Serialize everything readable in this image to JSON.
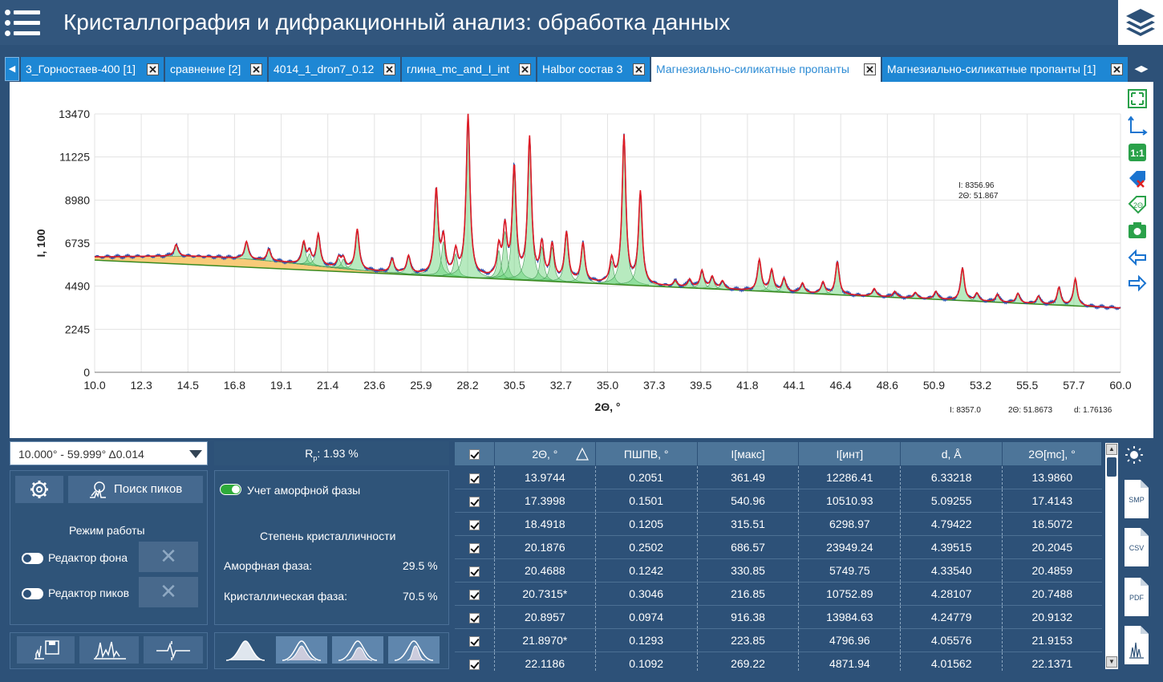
{
  "header": {
    "title": "Кристаллография и дифракционный анализ: обработка данных"
  },
  "tabs": [
    {
      "label": "3_Горностаев-400 [1]",
      "active": false
    },
    {
      "label": "сравнение [2]",
      "active": false
    },
    {
      "label": "4014_1_dron7_0.12",
      "active": false
    },
    {
      "label": "глина_mc_and_I_int",
      "active": false
    },
    {
      "label": "Halbor состав 3",
      "active": false
    },
    {
      "label": "Магнезиально-силикатные пропанты",
      "active": true
    },
    {
      "label": "Магнезиально-силикатные пропанты [1]",
      "active": false
    }
  ],
  "chart_data": {
    "type": "line",
    "xlabel": "2Θ, °",
    "ylabel": "I, 100",
    "xlim": [
      10.0,
      60.0
    ],
    "ylim": [
      0,
      13470
    ],
    "x_ticks": [
      "10.0",
      "12.3",
      "14.5",
      "16.8",
      "19.1",
      "21.4",
      "23.6",
      "25.9",
      "28.2",
      "30.5",
      "32.7",
      "35.0",
      "37.3",
      "39.5",
      "41.8",
      "44.1",
      "46.4",
      "48.6",
      "50.9",
      "53.2",
      "55.5",
      "57.7",
      "60.0"
    ],
    "y_ticks": [
      "0",
      "2245",
      "4490",
      "6735",
      "8980",
      "11225",
      "13470"
    ],
    "grid": true,
    "background_line": {
      "x": [
        10.0,
        60.0
      ],
      "y": [
        5850,
        3350
      ]
    },
    "peaks": [
      {
        "x": 13.97,
        "h": 600
      },
      {
        "x": 17.4,
        "h": 900
      },
      {
        "x": 18.49,
        "h": 600
      },
      {
        "x": 20.19,
        "h": 1100
      },
      {
        "x": 20.47,
        "h": 600
      },
      {
        "x": 20.9,
        "h": 1600
      },
      {
        "x": 21.9,
        "h": 500
      },
      {
        "x": 22.12,
        "h": 500
      },
      {
        "x": 22.8,
        "h": 2100
      },
      {
        "x": 24.5,
        "h": 700
      },
      {
        "x": 25.3,
        "h": 900
      },
      {
        "x": 26.65,
        "h": 4400
      },
      {
        "x": 27.0,
        "h": 1800
      },
      {
        "x": 27.6,
        "h": 1200
      },
      {
        "x": 28.2,
        "h": 8400
      },
      {
        "x": 29.7,
        "h": 1500
      },
      {
        "x": 30.0,
        "h": 2500
      },
      {
        "x": 30.45,
        "h": 5700
      },
      {
        "x": 31.2,
        "h": 7300
      },
      {
        "x": 31.8,
        "h": 1800
      },
      {
        "x": 32.3,
        "h": 1800
      },
      {
        "x": 33.0,
        "h": 2500
      },
      {
        "x": 33.8,
        "h": 2000
      },
      {
        "x": 35.2,
        "h": 1200
      },
      {
        "x": 35.8,
        "h": 7700
      },
      {
        "x": 36.6,
        "h": 4800
      },
      {
        "x": 38.3,
        "h": 300
      },
      {
        "x": 39.0,
        "h": 400
      },
      {
        "x": 39.6,
        "h": 900
      },
      {
        "x": 40.1,
        "h": 600
      },
      {
        "x": 40.6,
        "h": 400
      },
      {
        "x": 42.4,
        "h": 1600
      },
      {
        "x": 43.0,
        "h": 1100
      },
      {
        "x": 43.6,
        "h": 700
      },
      {
        "x": 44.5,
        "h": 500
      },
      {
        "x": 45.5,
        "h": 600
      },
      {
        "x": 46.2,
        "h": 1700
      },
      {
        "x": 48.0,
        "h": 400
      },
      {
        "x": 49.0,
        "h": 300
      },
      {
        "x": 50.0,
        "h": 300
      },
      {
        "x": 51.0,
        "h": 400
      },
      {
        "x": 52.3,
        "h": 1700
      },
      {
        "x": 53.0,
        "h": 400
      },
      {
        "x": 54.0,
        "h": 400
      },
      {
        "x": 55.0,
        "h": 500
      },
      {
        "x": 56.0,
        "h": 400
      },
      {
        "x": 57.0,
        "h": 900
      },
      {
        "x": 57.8,
        "h": 1400
      }
    ],
    "amorphous_hump": {
      "center": 16.0,
      "height": 450,
      "width": 6.0
    },
    "cursor_tooltip": {
      "line1": "I: 8356.96",
      "line2": "2Θ: 51.867"
    },
    "status": {
      "i": "I: 8357.0",
      "theta": "2Θ: 51.8673",
      "d": "d: 1.76136"
    }
  },
  "range_select": {
    "value": "10.000° - 59.999° Δ0.014"
  },
  "rp": {
    "label": "R",
    "sub": "p",
    "value": ": 1.93 %"
  },
  "controls": {
    "find_peaks": "Поиск пиков",
    "mode_title": "Режим работы",
    "bg_editor": "Редактор фона",
    "peak_editor": "Редактор пиков",
    "amorphous_toggle": "Учет аморфной фазы",
    "crystallinity_title": "Степень кристалличности",
    "amorphous_label": "Аморфная фаза:",
    "amorphous_value": "29.5 %",
    "crystal_label": "Кристаллическая фаза:",
    "crystal_value": "70.5 %",
    "x_symbol": "✕"
  },
  "table": {
    "headers": [
      "2Θ, °",
      "ПШПВ, °",
      "I[макс]",
      "I[инт]",
      "d, Å",
      "2Θ[mc], °"
    ],
    "rows": [
      [
        "13.9744",
        "0.2051",
        "361.49",
        "12286.41",
        "6.33218",
        "13.9860"
      ],
      [
        "17.3998",
        "0.1501",
        "540.96",
        "10510.93",
        "5.09255",
        "17.4143"
      ],
      [
        "18.4918",
        "0.1205",
        "315.51",
        "6298.97",
        "4.79422",
        "18.5072"
      ],
      [
        "20.1876",
        "0.2502",
        "686.57",
        "23949.24",
        "4.39515",
        "20.2045"
      ],
      [
        "20.4688",
        "0.1242",
        "330.85",
        "5749.75",
        "4.33540",
        "20.4859"
      ],
      [
        "20.7315*",
        "0.3046",
        "216.85",
        "10752.89",
        "4.28107",
        "20.7488"
      ],
      [
        "20.8957",
        "0.0974",
        "916.38",
        "13984.63",
        "4.24779",
        "20.9132"
      ],
      [
        "21.8970*",
        "0.1293",
        "223.85",
        "4796.96",
        "4.05576",
        "21.9153"
      ],
      [
        "22.1186",
        "0.1092",
        "269.22",
        "4871.94",
        "4.01562",
        "22.1371"
      ]
    ]
  },
  "exports": [
    "SMP",
    "CSV",
    "PDF",
    ""
  ]
}
